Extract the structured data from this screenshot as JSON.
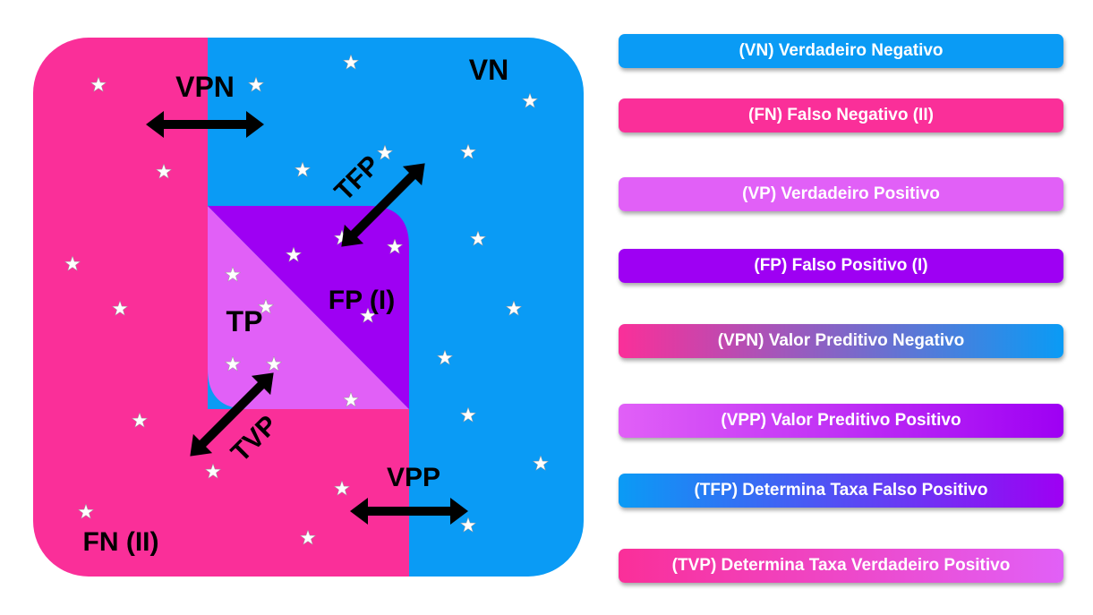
{
  "colors": {
    "blue": "#0a9bf5",
    "pink": "#fa2f99",
    "light_purple": "#e160f7",
    "purple": "#9e00f3",
    "star": "#ffffff",
    "arrow": "#000000"
  },
  "diagram": {
    "regions": {
      "vn": "VN",
      "fn": "FN (II)",
      "tp": "TP",
      "fp": "FP (I)"
    },
    "arrows": {
      "vpn": "VPN",
      "tfp": "TFP",
      "tvp": "TVP",
      "vpp": "VPP"
    },
    "star_icon": "star-icon"
  },
  "legend": {
    "items": [
      {
        "label": "(VN) Verdadeiro Negativo",
        "colors": [
          "#0a9bf5",
          "#0a9bf5"
        ]
      },
      {
        "label": "(FN) Falso Negativo (II)",
        "colors": [
          "#fa2f99",
          "#fa2f99"
        ]
      },
      {
        "label": "(VP) Verdadeiro Positivo",
        "colors": [
          "#e160f7",
          "#e160f7"
        ]
      },
      {
        "label": "(FP) Falso Positivo (I)",
        "colors": [
          "#9e00f3",
          "#9e00f3"
        ]
      },
      {
        "label": "(VPN) Valor Preditivo Negativo",
        "colors": [
          "#fa2f99",
          "#0a9bf5"
        ]
      },
      {
        "label": "(VPP) Valor Preditivo Positivo",
        "colors": [
          "#e160f7",
          "#9e00f3"
        ]
      },
      {
        "label": "(TFP) Determina Taxa Falso Positivo",
        "colors": [
          "#0a9bf5",
          "#9e00f3"
        ]
      },
      {
        "label": "(TVP) Determina Taxa Verdadeiro Positivo",
        "colors": [
          "#fa2f99",
          "#e160f7"
        ]
      }
    ]
  }
}
